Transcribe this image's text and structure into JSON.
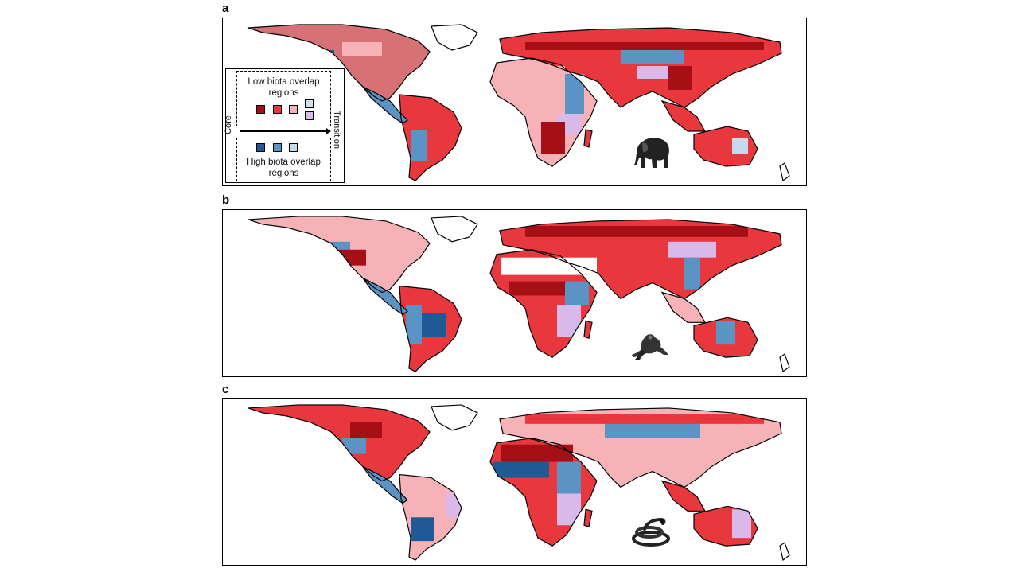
{
  "panels": [
    {
      "letter": "a",
      "animal_icon": "elephant-icon"
    },
    {
      "letter": "b",
      "animal_icon": "frog-icon"
    },
    {
      "letter": "c",
      "animal_icon": "snake-icon"
    }
  ],
  "legend": {
    "low_title": "Low biota overlap regions",
    "high_title": "High biota overlap regions",
    "axis_start": "Core",
    "axis_end": "Transition",
    "low_colors": [
      "#a50f15",
      "#e8383d",
      "#f7b2b7",
      "#cfe0ee",
      "#d9b8ea"
    ],
    "high_colors": [
      "#1f5a96",
      "#5b93c4",
      "#c6dbea"
    ]
  },
  "colors": {
    "core_low": "#a50f15",
    "mid_low": "#e8383d",
    "transition_low": "#f7b2b7",
    "core_high": "#1f5a96",
    "mid_high": "#5b93c4",
    "transition_high": "#c6dbea",
    "transition_mixed": "#d9b8ea"
  }
}
